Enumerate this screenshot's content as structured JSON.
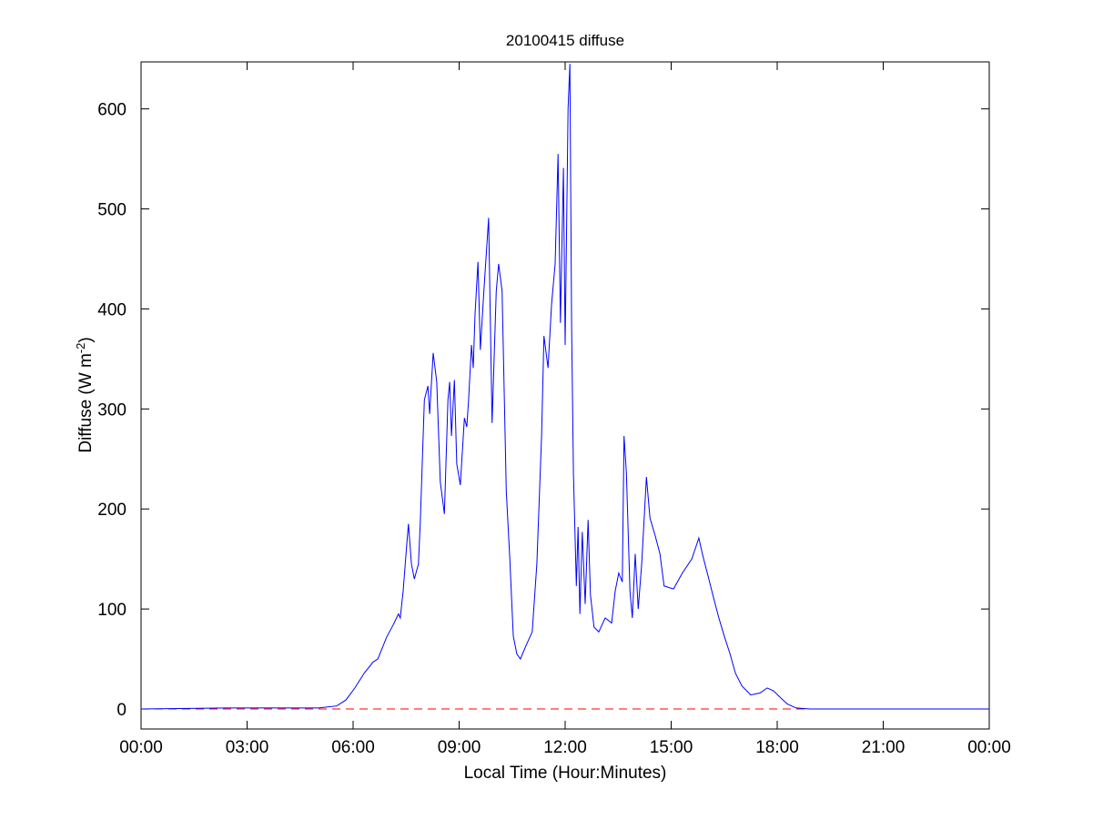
{
  "chart_data": {
    "type": "line",
    "title": "20100415 diffuse",
    "xlabel": "Local Time (Hour:Minutes)",
    "ylabel": "Diffuse (W m",
    "ylabel_superscript": "-2",
    "ylabel_suffix": ")",
    "xlim": [
      "00:00",
      "24:00"
    ],
    "ylim": [
      -20,
      647
    ],
    "x_tick_labels": [
      "00:00",
      "03:00",
      "06:00",
      "09:00",
      "12:00",
      "15:00",
      "18:00",
      "21:00",
      "00:00"
    ],
    "y_ticks": [
      0,
      100,
      200,
      300,
      400,
      500,
      600
    ],
    "grid": false,
    "series": [
      {
        "color": "#0000ff",
        "style": "solid",
        "x": [
          "00:00",
          "02:27",
          "03:29",
          "05:01",
          "05:32",
          "05:48",
          "06:03",
          "06:19",
          "06:34",
          "06:42",
          "06:57",
          "07:08",
          "07:17",
          "07:20",
          "07:25",
          "07:31",
          "07:34",
          "07:39",
          "07:44",
          "07:51",
          "07:54",
          "08:01",
          "08:07",
          "08:10",
          "08:16",
          "08:22",
          "08:28",
          "08:35",
          "08:41",
          "08:44",
          "08:47",
          "08:52",
          "08:56",
          "09:02",
          "09:09",
          "09:13",
          "09:16",
          "09:21",
          "09:24",
          "09:27",
          "09:32",
          "09:36",
          "09:42",
          "09:50",
          "09:56",
          "10:03",
          "10:07",
          "10:13",
          "10:20",
          "10:26",
          "10:32",
          "10:38",
          "10:44",
          "10:54",
          "11:04",
          "11:12",
          "11:20",
          "11:24",
          "11:31",
          "11:37",
          "11:43",
          "11:48",
          "11:52",
          "11:57",
          "12:00",
          "12:05",
          "12:08",
          "12:11",
          "12:14",
          "12:19",
          "12:22",
          "12:25",
          "12:29",
          "12:34",
          "12:39",
          "12:43",
          "12:49",
          "12:57",
          "13:08",
          "13:19",
          "13:25",
          "13:31",
          "13:37",
          "13:40",
          "13:44",
          "13:50",
          "13:54",
          "13:59",
          "14:04",
          "14:10",
          "14:18",
          "14:24",
          "14:33",
          "14:41",
          "14:48",
          "15:04",
          "15:19",
          "15:35",
          "15:47",
          "15:53",
          "16:03",
          "16:13",
          "16:21",
          "16:30",
          "16:40",
          "16:49",
          "17:00",
          "17:15",
          "17:31",
          "17:43",
          "17:54",
          "18:06",
          "18:17",
          "18:32",
          "18:56",
          "24:00"
        ],
        "y": [
          0,
          1,
          1,
          1,
          3,
          9,
          21,
          36,
          47,
          50,
          72,
          84,
          95,
          91,
          118,
          164,
          185,
          145,
          130,
          145,
          186,
          309,
          323,
          295,
          356,
          327,
          227,
          195,
          309,
          327,
          273,
          329,
          245,
          224,
          291,
          282,
          309,
          364,
          341,
          395,
          447,
          359,
          418,
          491,
          286,
          418,
          445,
          418,
          218,
          150,
          73,
          55,
          50,
          64,
          77,
          145,
          273,
          373,
          341,
          405,
          445,
          555,
          386,
          541,
          364,
          600,
          645,
          382,
          236,
          123,
          182,
          95,
          177,
          105,
          189,
          114,
          82,
          77,
          91,
          86,
          118,
          136,
          127,
          273,
          236,
          118,
          91,
          155,
          100,
          145,
          232,
          191,
          173,
          155,
          123,
          120,
          136,
          150,
          171,
          155,
          132,
          109,
          91,
          73,
          55,
          36,
          23,
          14,
          16,
          21,
          18,
          11,
          5,
          1,
          0,
          0
        ]
      },
      {
        "color": "#ff0000",
        "style": "dashed",
        "x": [
          "00:00",
          "24:00"
        ],
        "y": [
          0,
          0
        ]
      }
    ]
  }
}
